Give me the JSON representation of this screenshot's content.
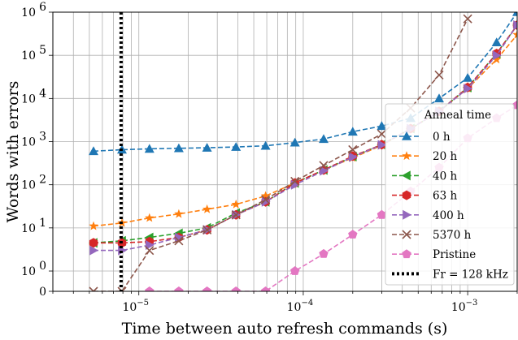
{
  "chart_data": {
    "type": "line",
    "title": "",
    "xlabel": "Time between auto refresh commands (s)",
    "ylabel": "Words with errors",
    "xscale": "log",
    "yscale": "symlog",
    "xlim": [
      3e-06,
      0.002
    ],
    "ylim": [
      0,
      1000000
    ],
    "grid": "on",
    "x_ticks": [
      {
        "value": 1e-05,
        "base": "10",
        "exp": "−5"
      },
      {
        "value": 0.0001,
        "base": "10",
        "exp": "−4"
      },
      {
        "value": 0.001,
        "base": "10",
        "exp": "−3"
      }
    ],
    "y_ticks": [
      {
        "value": 0,
        "base": "0",
        "exp": ""
      },
      {
        "value": 1,
        "base": "10",
        "exp": "0"
      },
      {
        "value": 10,
        "base": "10",
        "exp": "1"
      },
      {
        "value": 100,
        "base": "10",
        "exp": "2"
      },
      {
        "value": 1000,
        "base": "10",
        "exp": "3"
      },
      {
        "value": 10000,
        "base": "10",
        "exp": "4"
      },
      {
        "value": 100000,
        "base": "10",
        "exp": "5"
      },
      {
        "value": 1000000,
        "base": "10",
        "exp": "6"
      }
    ],
    "legend": {
      "title": "Anneal time",
      "placement": "lower-right"
    },
    "series": [
      {
        "name": "0 h",
        "color": "#1f77b4",
        "marker": "triangle-up",
        "x": [
          5.3e-06,
          7.9e-06,
          1.16e-05,
          1.75e-05,
          2.6e-05,
          3.9e-05,
          5.9e-05,
          8.9e-05,
          0.000133,
          0.0002,
          0.0003,
          0.00045,
          0.00067,
          0.001,
          0.0015,
          0.002
        ],
        "y": [
          600,
          650,
          680,
          700,
          720,
          750,
          800,
          950,
          1150,
          1700,
          2300,
          3500,
          10000,
          30000,
          200000,
          1000000
        ]
      },
      {
        "name": "20 h",
        "color": "#ff7f0e",
        "marker": "star",
        "x": [
          5.3e-06,
          7.9e-06,
          1.16e-05,
          1.75e-05,
          2.6e-05,
          3.9e-05,
          5.9e-05,
          8.9e-05,
          0.000133,
          0.0002,
          0.0003,
          0.00045,
          0.00067,
          0.001,
          0.0015,
          0.002
        ],
        "y": [
          11,
          13,
          17,
          21,
          27,
          35,
          55,
          110,
          220,
          420,
          820,
          2000,
          5000,
          17000,
          80000,
          300000
        ]
      },
      {
        "name": "40 h",
        "color": "#2ca02c",
        "marker": "triangle-left",
        "x": [
          5.3e-06,
          7.9e-06,
          1.16e-05,
          1.75e-05,
          2.6e-05,
          3.9e-05,
          5.9e-05,
          8.9e-05,
          0.000133,
          0.0002,
          0.0003,
          0.00045,
          0.00067,
          0.001,
          0.0015,
          0.002
        ],
        "y": [
          4.5,
          5,
          6,
          7.5,
          10,
          22,
          40,
          110,
          220,
          450,
          850,
          2000,
          5000,
          18000,
          110000,
          500000
        ]
      },
      {
        "name": "63 h",
        "color": "#d62728",
        "marker": "hexagon",
        "x": [
          5.3e-06,
          7.9e-06,
          1.16e-05,
          1.75e-05,
          2.6e-05,
          3.9e-05,
          5.9e-05,
          8.9e-05,
          0.000133,
          0.0002,
          0.0003,
          0.00045,
          0.00067,
          0.001,
          0.0015,
          0.002
        ],
        "y": [
          4.5,
          4.5,
          4.8,
          6,
          9,
          20,
          40,
          110,
          220,
          460,
          850,
          2000,
          5000,
          18000,
          110000,
          500000
        ]
      },
      {
        "name": "400 h",
        "color": "#9467bd",
        "marker": "triangle-right",
        "x": [
          5.3e-06,
          7.9e-06,
          1.16e-05,
          1.75e-05,
          2.6e-05,
          3.9e-05,
          5.9e-05,
          8.9e-05,
          0.000133,
          0.0002,
          0.0003,
          0.00045,
          0.00067,
          0.001,
          0.0015,
          0.002
        ],
        "y": [
          3,
          3,
          4,
          6,
          9,
          20,
          40,
          100,
          210,
          440,
          840,
          2000,
          5000,
          17000,
          100000,
          500000
        ]
      },
      {
        "name": "5370 h",
        "color": "#8c564b",
        "marker": "x",
        "x": [
          5.3e-06,
          7.9e-06,
          1.16e-05,
          1.75e-05,
          2.6e-05,
          3.9e-05,
          5.9e-05,
          8.9e-05,
          0.000133,
          0.0002,
          0.0003,
          0.00045,
          0.00067,
          0.001
        ],
        "y": [
          0,
          0,
          3,
          5,
          9,
          20,
          45,
          120,
          280,
          650,
          1500,
          6000,
          35000,
          700000
        ]
      },
      {
        "name": "Pristine",
        "color": "#e377c2",
        "marker": "pentagon",
        "x": [
          1.16e-05,
          1.75e-05,
          2.6e-05,
          3.9e-05,
          5.9e-05,
          8.9e-05,
          0.000133,
          0.0002,
          0.0003,
          0.00045,
          0.00067,
          0.001,
          0.0015,
          0.002
        ],
        "y": [
          0,
          0,
          0,
          0,
          0,
          1,
          2.5,
          7,
          20,
          70,
          250,
          1200,
          3500,
          7000
        ]
      }
    ],
    "reference_line": {
      "name": "Fr = 128 kHz",
      "x": 7.8e-06,
      "color": "#000000",
      "style": "dotted"
    }
  }
}
